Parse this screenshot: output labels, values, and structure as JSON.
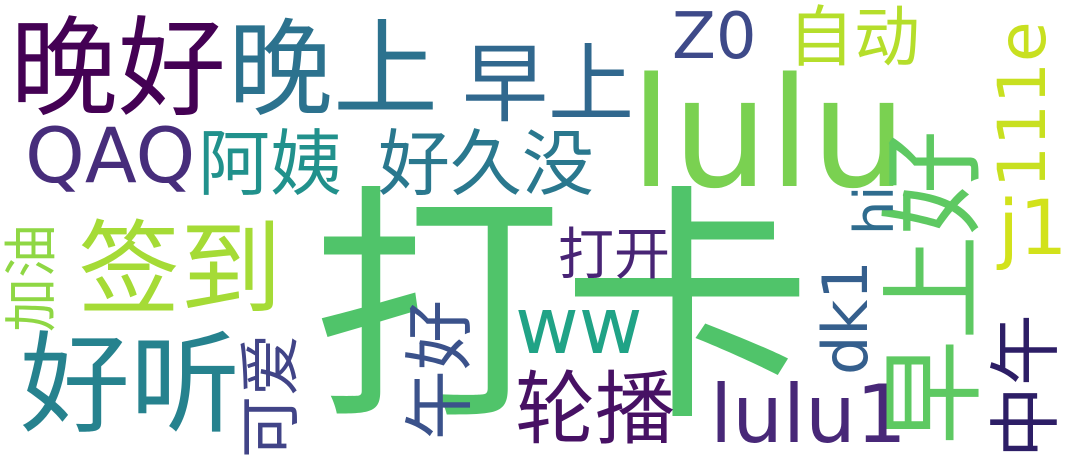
{
  "words": [
    {
      "text": "打卡",
      "color": "#50c46a",
      "rotated": false
    },
    {
      "text": "lulu",
      "color": "#7ad151",
      "rotated": false
    },
    {
      "text": "签到",
      "color": "#a5db36",
      "rotated": false
    },
    {
      "text": "晚上",
      "color": "#2c728e",
      "rotated": false
    },
    {
      "text": "晚好",
      "color": "#440154",
      "rotated": false
    },
    {
      "text": "早上",
      "color": "#31688e",
      "rotated": false
    },
    {
      "text": "好听",
      "color": "#26828e",
      "rotated": false
    },
    {
      "text": "早上好",
      "color": "#5ec962",
      "rotated": true
    },
    {
      "text": "阿姨",
      "color": "#21918c",
      "rotated": false
    },
    {
      "text": "好久没",
      "color": "#2a788e",
      "rotated": false
    },
    {
      "text": "QAQ",
      "color": "#472d7b",
      "rotated": false
    },
    {
      "text": "轮播",
      "color": "#471164",
      "rotated": false
    },
    {
      "text": "lulu1",
      "color": "#482878",
      "rotated": false
    },
    {
      "text": "自动",
      "color": "#b5de2b",
      "rotated": false
    },
    {
      "text": "Z0",
      "color": "#3e4a89",
      "rotated": false
    },
    {
      "text": "111e",
      "color": "#c8e020",
      "rotated": true
    },
    {
      "text": "j1",
      "color": "#d2e21b",
      "rotated": false
    },
    {
      "text": "中午",
      "color": "#2d1e66",
      "rotated": true
    },
    {
      "text": "午好",
      "color": "#3b528b",
      "rotated": true
    },
    {
      "text": "ww",
      "color": "#20a386",
      "rotated": false
    },
    {
      "text": "可爱",
      "color": "#414487",
      "rotated": true
    },
    {
      "text": "加油",
      "color": "#8fd744",
      "rotated": true
    },
    {
      "text": "打开",
      "color": "#482475",
      "rotated": false
    },
    {
      "text": "dk1",
      "color": "#355f8d",
      "rotated": true
    },
    {
      "text": "hi",
      "color": "#2f6c8e",
      "rotated": true
    }
  ]
}
